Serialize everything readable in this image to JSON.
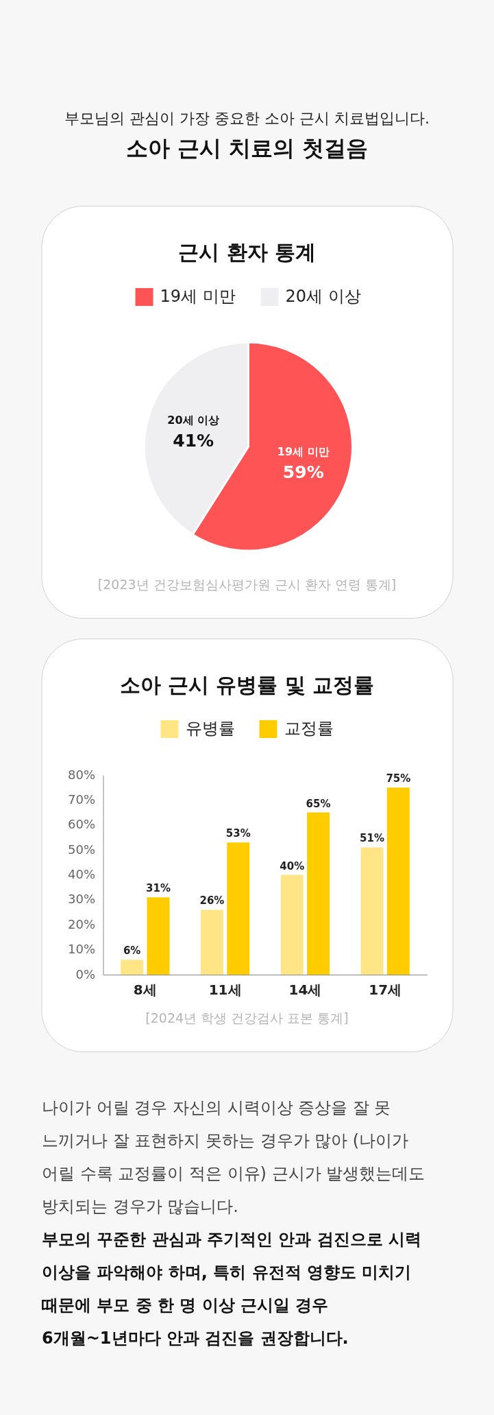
{
  "chart_data": [
    {
      "type": "other",
      "annotations": [
        "부모님의 관심이 가장 중요한 소아 근시 치료법입니다.",
        "소아 근시 치료의 첫걸음"
      ]
    },
    {
      "type": "pie",
      "title": "근시 환자 통계",
      "categories": [
        "19세 미만",
        "20세 이상"
      ],
      "values": [
        59,
        41
      ],
      "colors": [
        "#ff5455",
        "#efeff1"
      ],
      "value_labels": [
        "59%",
        "41%"
      ],
      "legend": "top",
      "annotations": [
        "[2023년 건강보험심사평가원 근시 환자 연령 통계]"
      ]
    },
    {
      "type": "bar",
      "title": "소아 근시 유병률 및 교정률",
      "categories": [
        "8세",
        "11세",
        "14세",
        "17세"
      ],
      "series": [
        {
          "name": "유병률",
          "color": "#ffe586",
          "values": [
            6,
            26,
            40,
            51
          ],
          "value_labels": [
            "6%",
            "26%",
            "40%",
            "51%"
          ]
        },
        {
          "name": "교정률",
          "color": "#ffcc00",
          "values": [
            31,
            53,
            65,
            75
          ],
          "value_labels": [
            "31%",
            "53%",
            "65%",
            "75%"
          ]
        }
      ],
      "ylim": [
        0,
        80
      ],
      "yticks": [
        {
          "value": 0,
          "label": "0%"
        },
        {
          "value": 10,
          "label": "10%"
        },
        {
          "value": 20,
          "label": "20%"
        },
        {
          "value": 30,
          "label": "30%"
        },
        {
          "value": 40,
          "label": "40%"
        },
        {
          "value": 50,
          "label": "50%"
        },
        {
          "value": 60,
          "label": "60%"
        },
        {
          "value": 70,
          "label": "70%"
        },
        {
          "value": 80,
          "label": "80%"
        }
      ],
      "legend": "top",
      "annotations": [
        "[2024년 학생 건강검사 표본 통계]"
      ]
    },
    {
      "type": "other",
      "annotations": [
        "나이가 어릴 경우 자신의 시력이상 증상을 잘 못 느끼거나 잘 표현하지 못하는 경우가 많아 (나이가 어릴 수록 교정률이 적은 이유) 근시가 발생했는데도 방치되는 경우가 많습니다.",
        "부모의 꾸준한 관심과 주기적인 안과 검진으로 시력 이상을 파악해야 하며, 특히 유전적 영향도 미치기 때문에 부모 중 한 명 이상 근시일 경우 6개월~1년마다 안과 검진을 권장합니다."
      ]
    }
  ]
}
